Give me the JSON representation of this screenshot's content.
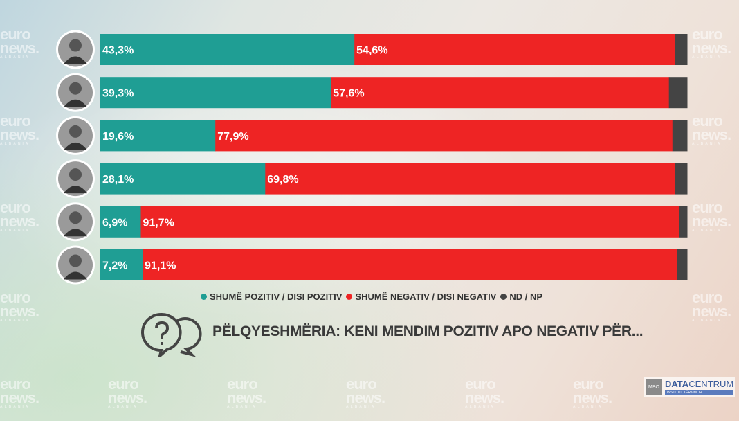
{
  "watermark": {
    "line1": "euro",
    "line2": "news.",
    "line3": "ALBANIA"
  },
  "chart_data": {
    "type": "bar",
    "orientation": "horizontal",
    "stacked": true,
    "title": "PËLQYESHMËRIA: KENI MENDIM POZITIV APO NEGATIV PËR...",
    "categories": [
      "Person 1",
      "Person 2",
      "Person 3",
      "Person 4",
      "Person 5",
      "Person 6"
    ],
    "series": [
      {
        "name": "SHUMË POZITIV / DISI POZITIV",
        "color": "#1f9e94",
        "values": [
          43.3,
          39.3,
          19.6,
          28.1,
          6.9,
          7.2
        ],
        "labels": [
          "43,3%",
          "39,3%",
          "19,6%",
          "28,1%",
          "6,9%",
          "7,2%"
        ]
      },
      {
        "name": "SHUMË NEGATIV / DISI NEGATIV",
        "color": "#ee2424",
        "values": [
          54.6,
          57.6,
          77.9,
          69.8,
          91.7,
          91.1
        ],
        "labels": [
          "54,6%",
          "57,6%",
          "77,9%",
          "69,8%",
          "91,7%",
          "91,1%"
        ]
      },
      {
        "name": "ND / NP",
        "color": "#444444",
        "values": [
          2.1,
          3.1,
          2.5,
          2.1,
          1.4,
          1.7
        ]
      }
    ],
    "xlim": [
      0,
      100
    ],
    "legend": "bottom"
  },
  "logo": {
    "mbo": "MBO",
    "data": "DATA",
    "centrum": "CENTRUM",
    "sub": "INSTITUT KËRKIMOR"
  }
}
